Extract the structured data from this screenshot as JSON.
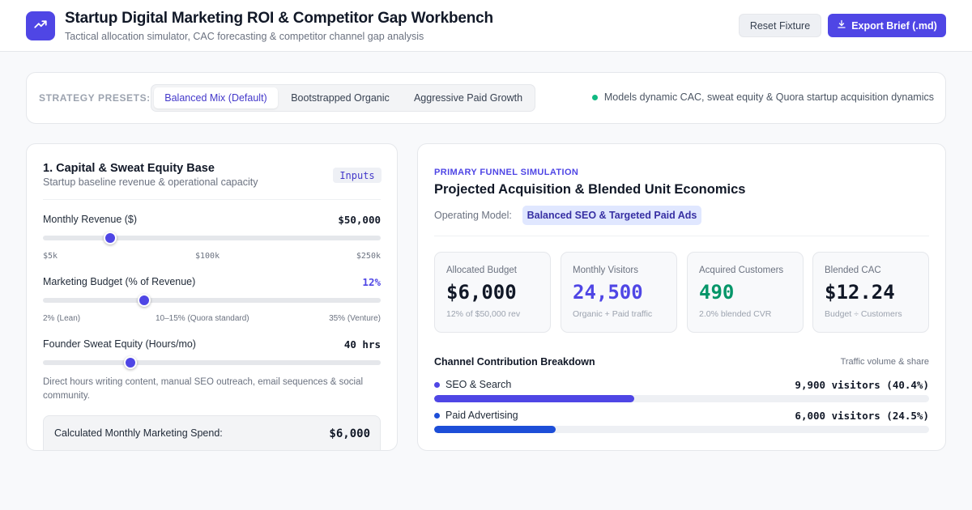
{
  "header": {
    "title": "Startup Digital Marketing ROI & Competitor Gap Workbench",
    "subtitle": "Tactical allocation simulator, CAC forecasting & competitor channel gap analysis",
    "logo_icon": "trend-up-icon",
    "reset_label": "Reset Fixture",
    "export_label": "Export Brief (.md)",
    "export_icon": "download-icon"
  },
  "presets": {
    "label": "STRATEGY PRESETS:",
    "options": [
      "Balanced Mix (Default)",
      "Bootstrapped Organic",
      "Aggressive Paid Growth"
    ],
    "selected": "Balanced Mix (Default)",
    "note": "Models dynamic CAC, sweat equity & Quora startup acquisition dynamics"
  },
  "inputs": {
    "title": "1. Capital & Sweat Equity Base",
    "subtitle": "Startup baseline revenue & operational capacity",
    "badge": "Inputs",
    "revenue": {
      "label": "Monthly Revenue ($)",
      "value_text": "$50,000",
      "ticks": [
        "$5k",
        "$100k",
        "$250k"
      ],
      "level": 0.2
    },
    "budget": {
      "label": "Marketing Budget (% of Revenue)",
      "value_text": "12%",
      "ticks": [
        "2% (Lean)",
        "10–15% (Quora standard)",
        "35% (Venture)"
      ],
      "level": 0.3
    },
    "sweat": {
      "label": "Founder Sweat Equity (Hours/mo)",
      "value_text": "40 hrs",
      "level": 0.26
    },
    "help_text": "Direct hours writing content, manual SEO outreach, email sequences & social community.",
    "spend": {
      "label": "Calculated Monthly Marketing Spend:",
      "value": "$6,000"
    }
  },
  "funnel": {
    "eyebrow": "PRIMARY FUNNEL SIMULATION",
    "title": "Projected Acquisition & Blended Unit Economics",
    "model_label": "Operating Model:",
    "model_value": "Balanced SEO & Targeted Paid Ads",
    "kpis": [
      {
        "label": "Allocated Budget",
        "value": "$6,000",
        "foot": "12% of $50,000 rev"
      },
      {
        "label": "Monthly Visitors",
        "value": "24,500",
        "foot": "Organic + Paid traffic"
      },
      {
        "label": "Acquired Customers",
        "value": "490",
        "foot": "2.0% blended CVR"
      },
      {
        "label": "Blended CAC",
        "value": "$12.24",
        "foot": "Budget ÷ Customers"
      }
    ],
    "breakdown_title": "Channel Contribution Breakdown",
    "breakdown_note": "Traffic volume & share",
    "channels": [
      {
        "name": "SEO & Search",
        "value_text": "9,900 visitors (40.4%)",
        "share": 0.404,
        "color": "#4f46e5"
      },
      {
        "name": "Paid Advertising",
        "value_text": "6,000 visitors (24.5%)",
        "share": 0.245,
        "color": "#1d4ed8"
      }
    ]
  }
}
